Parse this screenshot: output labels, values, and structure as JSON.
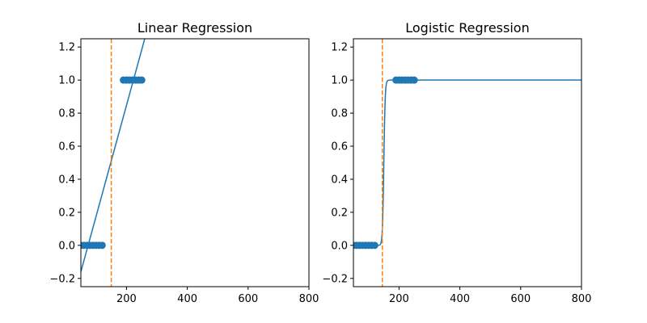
{
  "colors": {
    "data": "#1f77b4",
    "threshold": "#ff7f0e",
    "axis": "#000000",
    "background": "#ffffff"
  },
  "chart_data": [
    {
      "type": "scatter",
      "title": "Linear Regression",
      "xlabel": "",
      "ylabel": "",
      "xlim": [
        50,
        800
      ],
      "ylim": [
        -0.25,
        1.25
      ],
      "xticks": [
        200,
        400,
        600,
        800
      ],
      "xtick_labels": [
        "200",
        "400",
        "600",
        "800"
      ],
      "yticks": [
        -0.2,
        0.0,
        0.2,
        0.4,
        0.6,
        0.8,
        1.0,
        1.2
      ],
      "ytick_labels": [
        "−0.2",
        "0.0",
        "0.2",
        "0.4",
        "0.6",
        "0.8",
        "1.0",
        "1.2"
      ],
      "grid": false,
      "points": {
        "x": [
          50,
          60,
          70,
          80,
          90,
          100,
          110,
          120,
          190,
          200,
          210,
          220,
          230,
          240,
          250
        ],
        "y": [
          0,
          0,
          0,
          0,
          0,
          0,
          0,
          0,
          1,
          1,
          1,
          1,
          1,
          1,
          1
        ]
      },
      "fit_line": {
        "x": [
          50,
          260
        ],
        "y": [
          -0.16,
          1.25
        ]
      },
      "threshold_x": 150
    },
    {
      "type": "scatter",
      "title": "Logistic Regression",
      "xlabel": "",
      "ylabel": "",
      "xlim": [
        50,
        800
      ],
      "ylim": [
        -0.25,
        1.25
      ],
      "xticks": [
        200,
        400,
        600,
        800
      ],
      "xtick_labels": [
        "200",
        "400",
        "600",
        "800"
      ],
      "yticks": [
        -0.2,
        0.0,
        0.2,
        0.4,
        0.6,
        0.8,
        1.0,
        1.2
      ],
      "ytick_labels": [
        "−0.2",
        "0.0",
        "0.2",
        "0.4",
        "0.6",
        "0.8",
        "1.0",
        "1.2"
      ],
      "grid": false,
      "points": {
        "x": [
          50,
          60,
          70,
          80,
          90,
          100,
          110,
          120,
          190,
          200,
          210,
          220,
          230,
          240,
          250
        ],
        "y": [
          0,
          0,
          0,
          0,
          0,
          0,
          0,
          0,
          1,
          1,
          1,
          1,
          1,
          1,
          1
        ]
      },
      "sigmoid": {
        "midpoint": 150,
        "steepness": 0.45,
        "x_range": [
          50,
          800
        ]
      },
      "threshold_x": 145
    }
  ]
}
